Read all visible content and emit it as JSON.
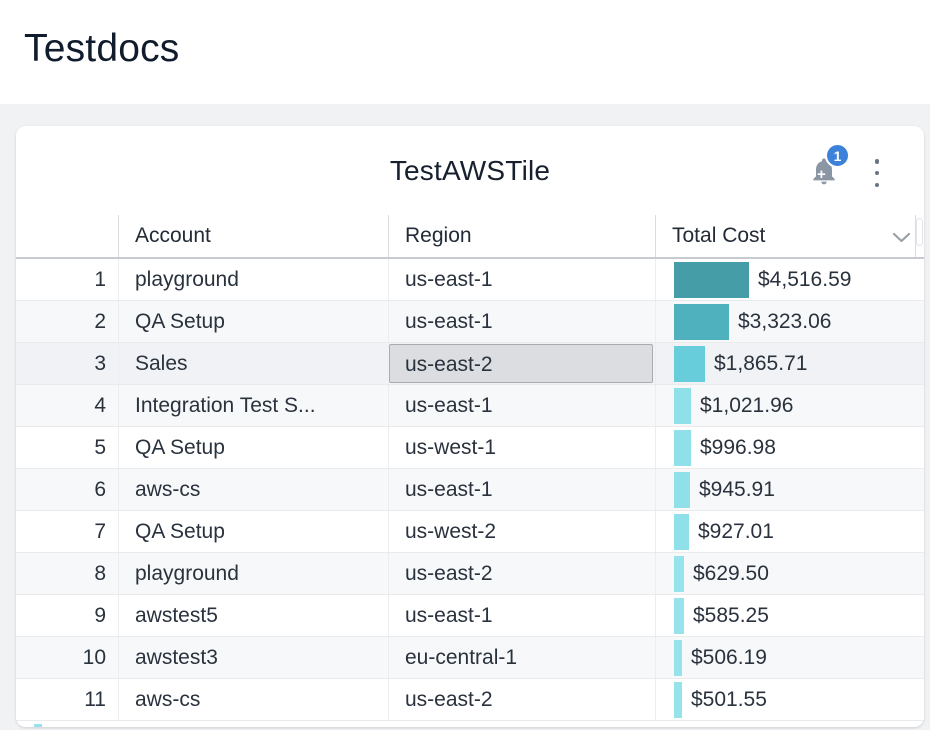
{
  "page": {
    "title": "Testdocs"
  },
  "tile": {
    "title": "TestAWSTile",
    "notification_badge": "1",
    "bell_icon": "bell-add-alert-icon",
    "menu_icon": "kebab-menu-icon"
  },
  "table": {
    "headers": {
      "account": "Account",
      "region": "Region",
      "total_cost": "Total Cost"
    },
    "sort_icon": "chevron-down-icon",
    "max_value": 4516.59,
    "rows": [
      {
        "num": "1",
        "account": "playground",
        "region": "us-east-1",
        "cost": "$4,516.59",
        "value": 4516.59,
        "bar_color": "#459DA8"
      },
      {
        "num": "2",
        "account": "QA Setup",
        "region": "us-east-1",
        "cost": "$3,323.06",
        "value": 3323.06,
        "bar_color": "#4FB1BE"
      },
      {
        "num": "3",
        "account": "Sales",
        "region": "us-east-2",
        "cost": "$1,865.71",
        "value": 1865.71,
        "bar_color": "#68CDDA",
        "highlight_region": true
      },
      {
        "num": "4",
        "account": "Integration Test S...",
        "region": "us-east-1",
        "cost": "$1,021.96",
        "value": 1021.96,
        "bar_color": "#8FE0E9"
      },
      {
        "num": "5",
        "account": "QA Setup",
        "region": "us-west-1",
        "cost": "$996.98",
        "value": 996.98,
        "bar_color": "#8FE0E9"
      },
      {
        "num": "6",
        "account": "aws-cs",
        "region": "us-east-1",
        "cost": "$945.91",
        "value": 945.91,
        "bar_color": "#8FE0E9"
      },
      {
        "num": "7",
        "account": "QA Setup",
        "region": "us-west-2",
        "cost": "$927.01",
        "value": 927.01,
        "bar_color": "#8FE0E9"
      },
      {
        "num": "8",
        "account": "playground",
        "region": "us-east-2",
        "cost": "$629.50",
        "value": 629.5,
        "bar_color": "#97E3EB"
      },
      {
        "num": "9",
        "account": "awstest5",
        "region": "us-east-1",
        "cost": "$585.25",
        "value": 585.25,
        "bar_color": "#97E3EB"
      },
      {
        "num": "10",
        "account": "awstest3",
        "region": "eu-central-1",
        "cost": "$506.19",
        "value": 506.19,
        "bar_color": "#97E3EB"
      },
      {
        "num": "11",
        "account": "aws-cs",
        "region": "us-east-2",
        "cost": "$501.55",
        "value": 501.55,
        "bar_color": "#97E3EB"
      }
    ]
  },
  "colors": {
    "badge_blue": "#3C82DA",
    "bar_teal_dark": "#459DA8",
    "bar_cyan_light": "#97E3EB",
    "highlight_cell_bg": "#DBDDE0",
    "page_background": "#F1F2F4",
    "title_text": "#101B2C"
  }
}
